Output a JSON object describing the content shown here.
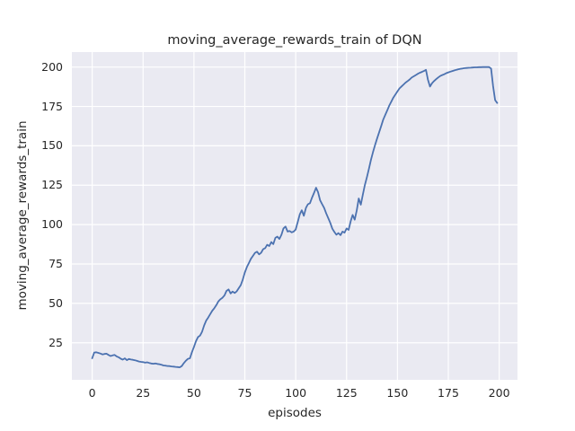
{
  "chart_data": {
    "type": "line",
    "title": "moving_average_rewards_train of DQN",
    "xlabel": "episodes",
    "ylabel": "moving_average_rewards_train",
    "xlim": [
      -10,
      209
    ],
    "ylim": [
      1.5,
      209.5
    ],
    "xticks": [
      0,
      25,
      50,
      75,
      100,
      125,
      150,
      175,
      200
    ],
    "yticks": [
      25,
      50,
      75,
      100,
      125,
      150,
      175,
      200
    ],
    "grid": true,
    "legend_position": "none",
    "colors": {
      "figure_background": "#ffffff",
      "axes_background": "#eaeaf2",
      "grid_color": "#ffffff",
      "line_color": "#4c72b0",
      "text_color": "#262626"
    },
    "series": [
      {
        "name": "moving_average_rewards_train",
        "points": [
          [
            0,
            15.2
          ],
          [
            1,
            18.8
          ],
          [
            2,
            19.0
          ],
          [
            3,
            18.6
          ],
          [
            4,
            18.2
          ],
          [
            5,
            17.6
          ],
          [
            6,
            17.9
          ],
          [
            7,
            18.1
          ],
          [
            8,
            17.3
          ],
          [
            9,
            16.6
          ],
          [
            10,
            17.0
          ],
          [
            11,
            17.3
          ],
          [
            12,
            16.4
          ],
          [
            13,
            15.8
          ],
          [
            14,
            14.9
          ],
          [
            15,
            14.3
          ],
          [
            16,
            15.1
          ],
          [
            17,
            14.0
          ],
          [
            18,
            14.7
          ],
          [
            19,
            14.4
          ],
          [
            20,
            14.2
          ],
          [
            21,
            13.9
          ],
          [
            22,
            13.5
          ],
          [
            23,
            13.1
          ],
          [
            24,
            12.9
          ],
          [
            25,
            12.7
          ],
          [
            26,
            12.4
          ],
          [
            27,
            12.6
          ],
          [
            28,
            12.2
          ],
          [
            29,
            11.9
          ],
          [
            30,
            11.7
          ],
          [
            31,
            11.9
          ],
          [
            32,
            11.6
          ],
          [
            33,
            11.4
          ],
          [
            34,
            11.1
          ],
          [
            35,
            10.6
          ],
          [
            36,
            10.5
          ],
          [
            37,
            10.3
          ],
          [
            38,
            10.2
          ],
          [
            39,
            10.0
          ],
          [
            40,
            9.9
          ],
          [
            41,
            9.7
          ],
          [
            42,
            9.6
          ],
          [
            43,
            9.4
          ],
          [
            44,
            10.2
          ],
          [
            45,
            12.1
          ],
          [
            46,
            13.6
          ],
          [
            47,
            14.8
          ],
          [
            48,
            15.2
          ],
          [
            49,
            19.0
          ],
          [
            50,
            22.4
          ],
          [
            51,
            26.1
          ],
          [
            52,
            28.6
          ],
          [
            53,
            29.6
          ],
          [
            54,
            32.0
          ],
          [
            55,
            36.0
          ],
          [
            56,
            39.1
          ],
          [
            57,
            41.0
          ],
          [
            58,
            43.2
          ],
          [
            59,
            45.4
          ],
          [
            60,
            46.9
          ],
          [
            61,
            48.9
          ],
          [
            62,
            51.3
          ],
          [
            63,
            52.6
          ],
          [
            64,
            53.6
          ],
          [
            65,
            55.1
          ],
          [
            66,
            57.9
          ],
          [
            67,
            58.9
          ],
          [
            68,
            56.3
          ],
          [
            69,
            57.5
          ],
          [
            70,
            56.6
          ],
          [
            71,
            57.7
          ],
          [
            72,
            59.6
          ],
          [
            73,
            61.6
          ],
          [
            74,
            65.1
          ],
          [
            75,
            69.6
          ],
          [
            76,
            73.1
          ],
          [
            77,
            75.6
          ],
          [
            78,
            78.3
          ],
          [
            79,
            80.2
          ],
          [
            80,
            82.1
          ],
          [
            81,
            82.8
          ],
          [
            82,
            81.1
          ],
          [
            83,
            82.1
          ],
          [
            84,
            84.4
          ],
          [
            85,
            85.1
          ],
          [
            86,
            87.2
          ],
          [
            87,
            86.4
          ],
          [
            88,
            88.9
          ],
          [
            89,
            87.6
          ],
          [
            90,
            91.6
          ],
          [
            91,
            92.4
          ],
          [
            92,
            90.9
          ],
          [
            93,
            93.6
          ],
          [
            94,
            97.6
          ],
          [
            95,
            98.8
          ],
          [
            96,
            95.6
          ],
          [
            97,
            95.9
          ],
          [
            98,
            95.1
          ],
          [
            99,
            95.6
          ],
          [
            100,
            96.9
          ],
          [
            101,
            101.6
          ],
          [
            102,
            106.6
          ],
          [
            103,
            109.1
          ],
          [
            104,
            105.6
          ],
          [
            105,
            110.6
          ],
          [
            106,
            112.9
          ],
          [
            107,
            113.6
          ],
          [
            108,
            117.1
          ],
          [
            109,
            120.1
          ],
          [
            110,
            123.4
          ],
          [
            111,
            120.6
          ],
          [
            112,
            115.4
          ],
          [
            113,
            112.9
          ],
          [
            114,
            110.6
          ],
          [
            115,
            107.1
          ],
          [
            116,
            104.1
          ],
          [
            117,
            101.1
          ],
          [
            118,
            97.4
          ],
          [
            119,
            95.3
          ],
          [
            120,
            93.6
          ],
          [
            121,
            94.6
          ],
          [
            122,
            93.3
          ],
          [
            123,
            95.6
          ],
          [
            124,
            94.9
          ],
          [
            125,
            97.6
          ],
          [
            126,
            96.6
          ],
          [
            127,
            102.1
          ],
          [
            128,
            106.1
          ],
          [
            129,
            103.1
          ],
          [
            130,
            109.1
          ],
          [
            131,
            116.6
          ],
          [
            132,
            112.6
          ],
          [
            133,
            119.1
          ],
          [
            134,
            125.1
          ],
          [
            135,
            130.1
          ],
          [
            136,
            135.6
          ],
          [
            137,
            141.1
          ],
          [
            138,
            146.1
          ],
          [
            139,
            150.6
          ],
          [
            140,
            154.6
          ],
          [
            141,
            158.6
          ],
          [
            142,
            162.6
          ],
          [
            143,
            166.6
          ],
          [
            144,
            169.6
          ],
          [
            145,
            172.6
          ],
          [
            146,
            175.6
          ],
          [
            147,
            178.1
          ],
          [
            148,
            180.6
          ],
          [
            149,
            182.6
          ],
          [
            150,
            184.6
          ],
          [
            151,
            186.4
          ],
          [
            152,
            187.7
          ],
          [
            153,
            188.9
          ],
          [
            154,
            190.1
          ],
          [
            155,
            191.1
          ],
          [
            156,
            192.1
          ],
          [
            157,
            193.3
          ],
          [
            158,
            194.1
          ],
          [
            159,
            194.9
          ],
          [
            160,
            195.7
          ],
          [
            161,
            196.4
          ],
          [
            162,
            196.9
          ],
          [
            163,
            197.5
          ],
          [
            164,
            198.2
          ],
          [
            165,
            192.0
          ],
          [
            166,
            187.6
          ],
          [
            167,
            189.8
          ],
          [
            168,
            191.1
          ],
          [
            169,
            192.3
          ],
          [
            170,
            193.4
          ],
          [
            171,
            194.3
          ],
          [
            172,
            194.9
          ],
          [
            173,
            195.4
          ],
          [
            174,
            196.1
          ],
          [
            175,
            196.6
          ],
          [
            176,
            197.1
          ],
          [
            177,
            197.5
          ],
          [
            178,
            197.9
          ],
          [
            179,
            198.3
          ],
          [
            180,
            198.6
          ],
          [
            181,
            198.9
          ],
          [
            182,
            199.1
          ],
          [
            183,
            199.3
          ],
          [
            184,
            199.4
          ],
          [
            185,
            199.5
          ],
          [
            186,
            199.6
          ],
          [
            187,
            199.7
          ],
          [
            188,
            199.8
          ],
          [
            189,
            199.8
          ],
          [
            190,
            199.9
          ],
          [
            191,
            199.9
          ],
          [
            192,
            200.0
          ],
          [
            193,
            200.0
          ],
          [
            194,
            200.0
          ],
          [
            195,
            200.0
          ],
          [
            196,
            199.0
          ],
          [
            197,
            188.0
          ],
          [
            198,
            179.0
          ],
          [
            199,
            177.2
          ]
        ]
      }
    ]
  }
}
